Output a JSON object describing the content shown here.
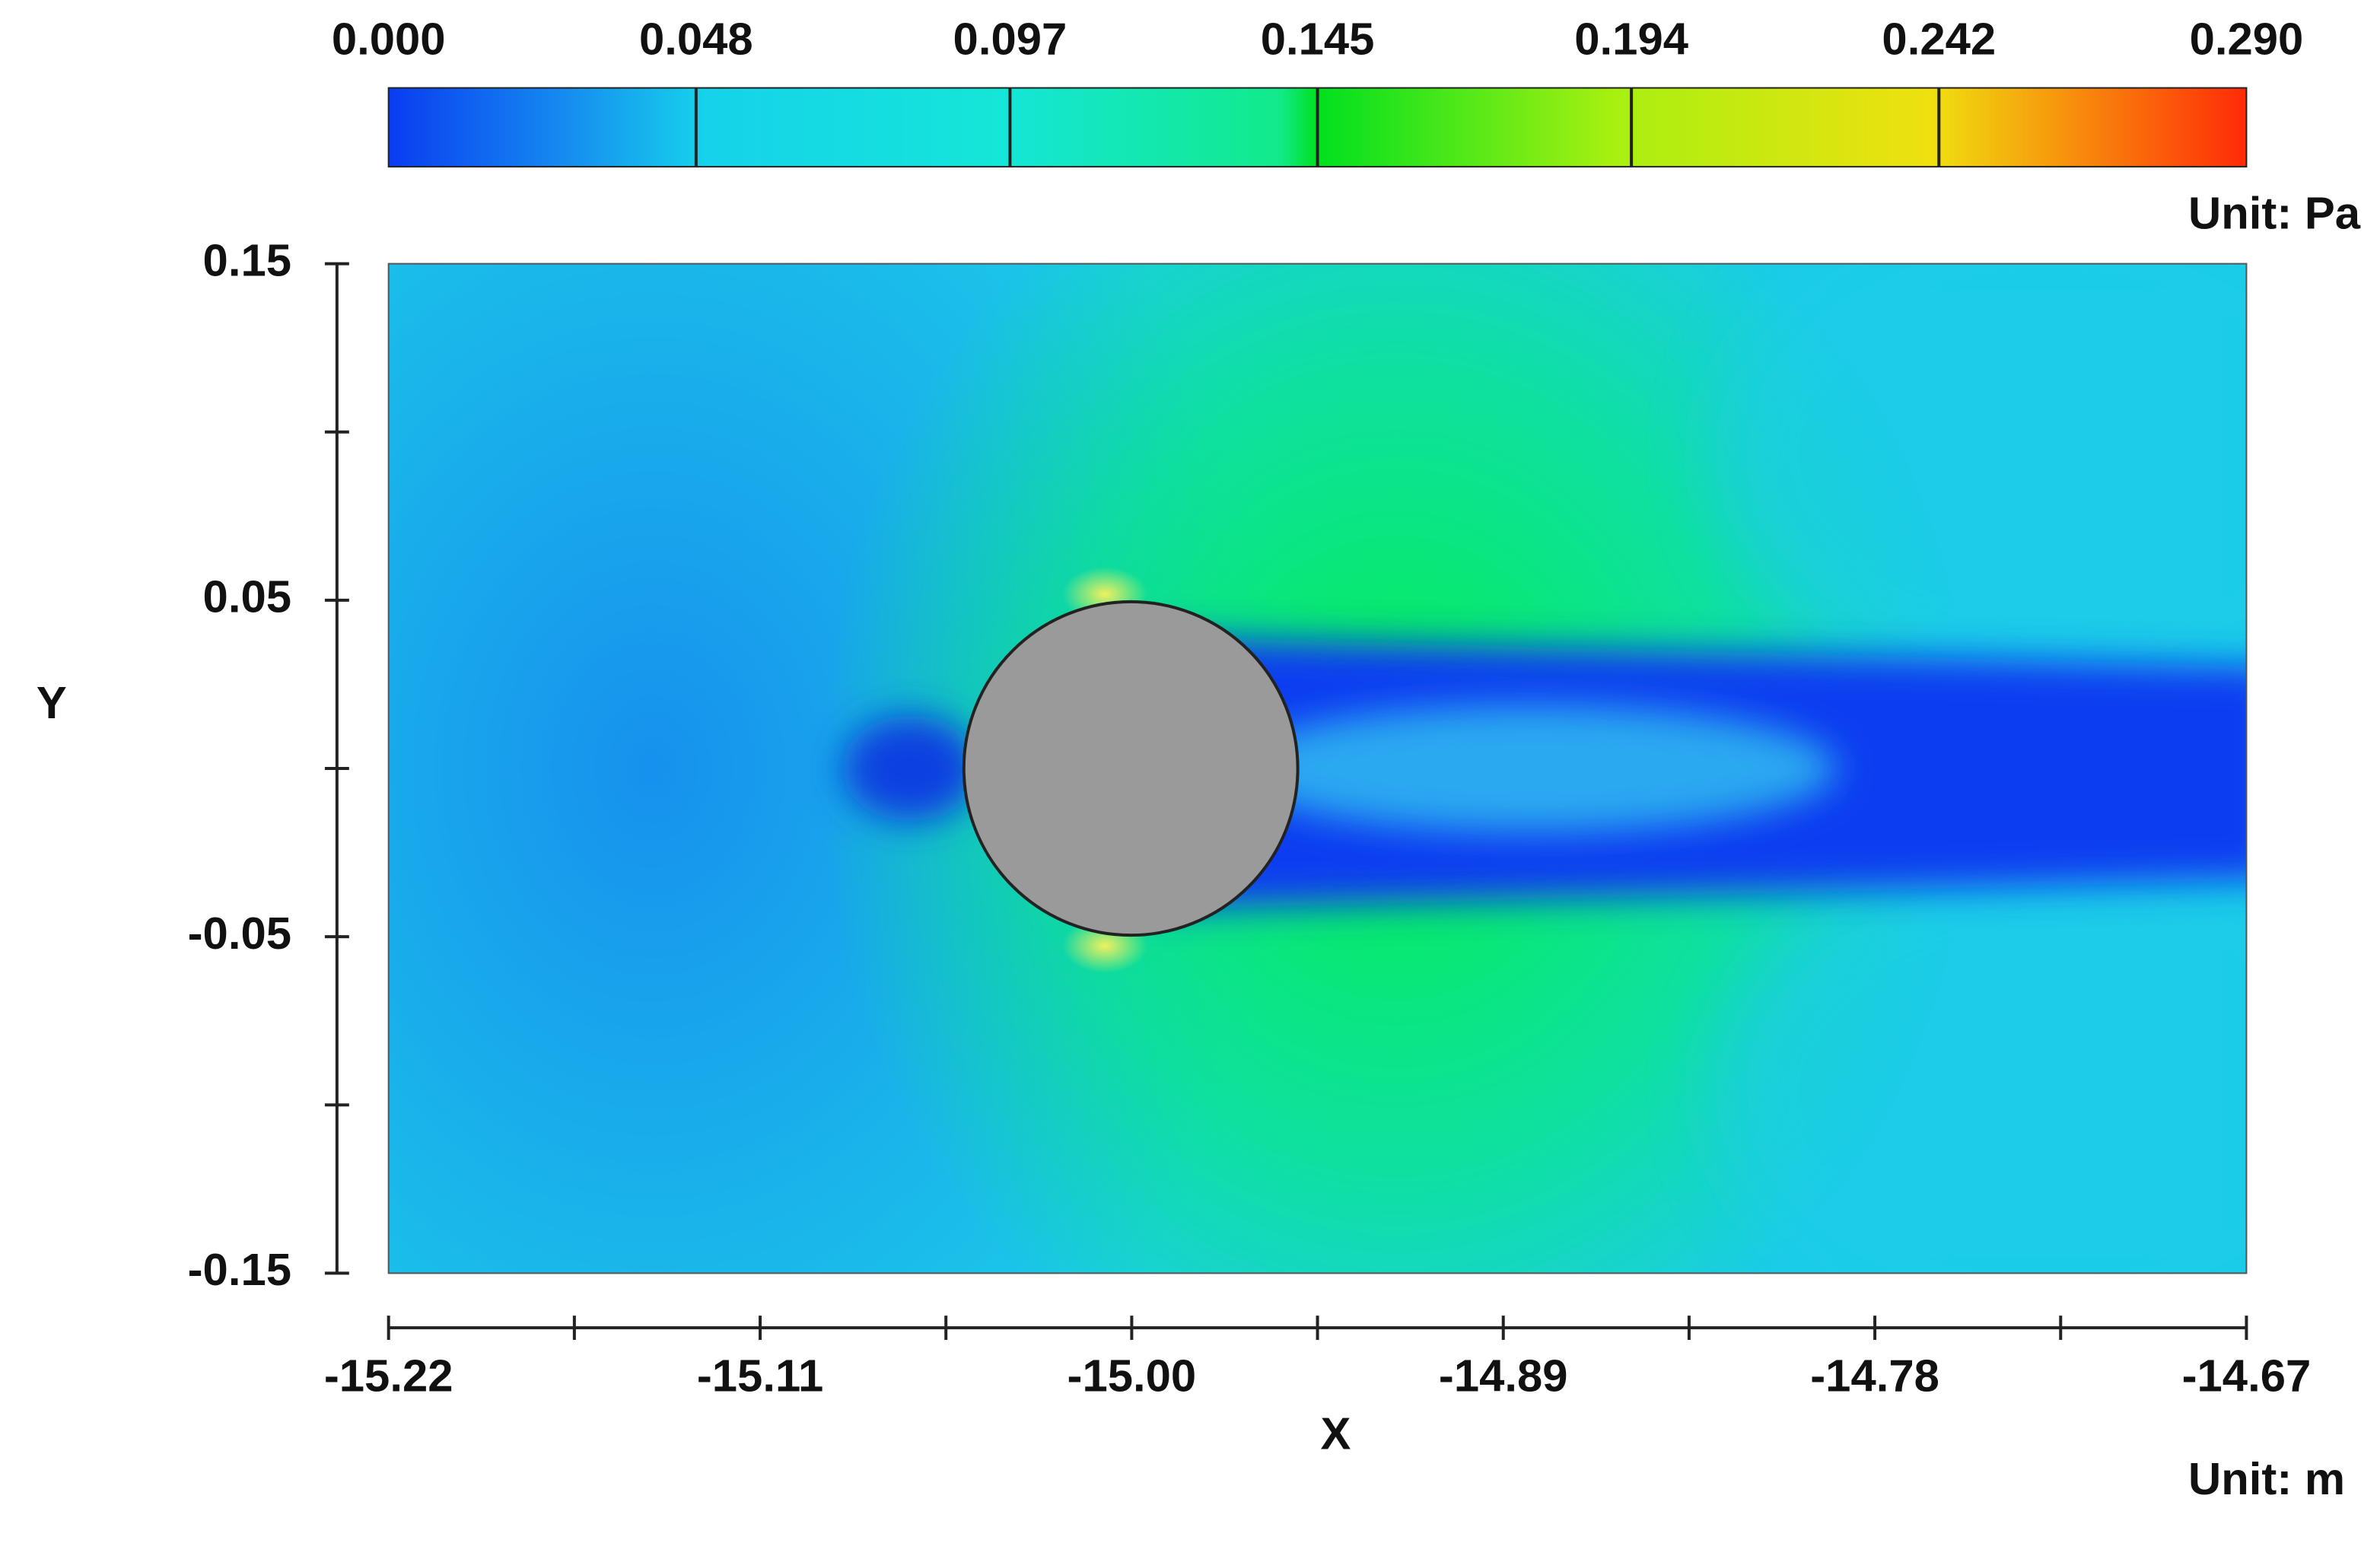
{
  "chart_data": {
    "type": "contour",
    "colorbar": {
      "lim": [
        0,
        0.29
      ],
      "ticks": [
        {
          "value": 0,
          "label": "0.000"
        },
        0.048,
        0.097,
        0.145,
        0.194,
        0.242,
        {
          "value": 0.29,
          "label": "0.290"
        }
      ],
      "unit_label": "Unit: Pa"
    },
    "x_label": "X",
    "y_label": "Y",
    "x_unit_label": "Unit: m",
    "xlim": [
      -15.22,
      -14.67
    ],
    "xticks": [
      -15.22,
      -15.11,
      {
        "value": -15,
        "label": "-15.00"
      },
      -14.89,
      -14.78,
      -14.67
    ],
    "ylim": [
      -0.15,
      0.15
    ],
    "yticks": [
      0.15,
      0.05,
      -0.05,
      -0.15
    ]
  }
}
